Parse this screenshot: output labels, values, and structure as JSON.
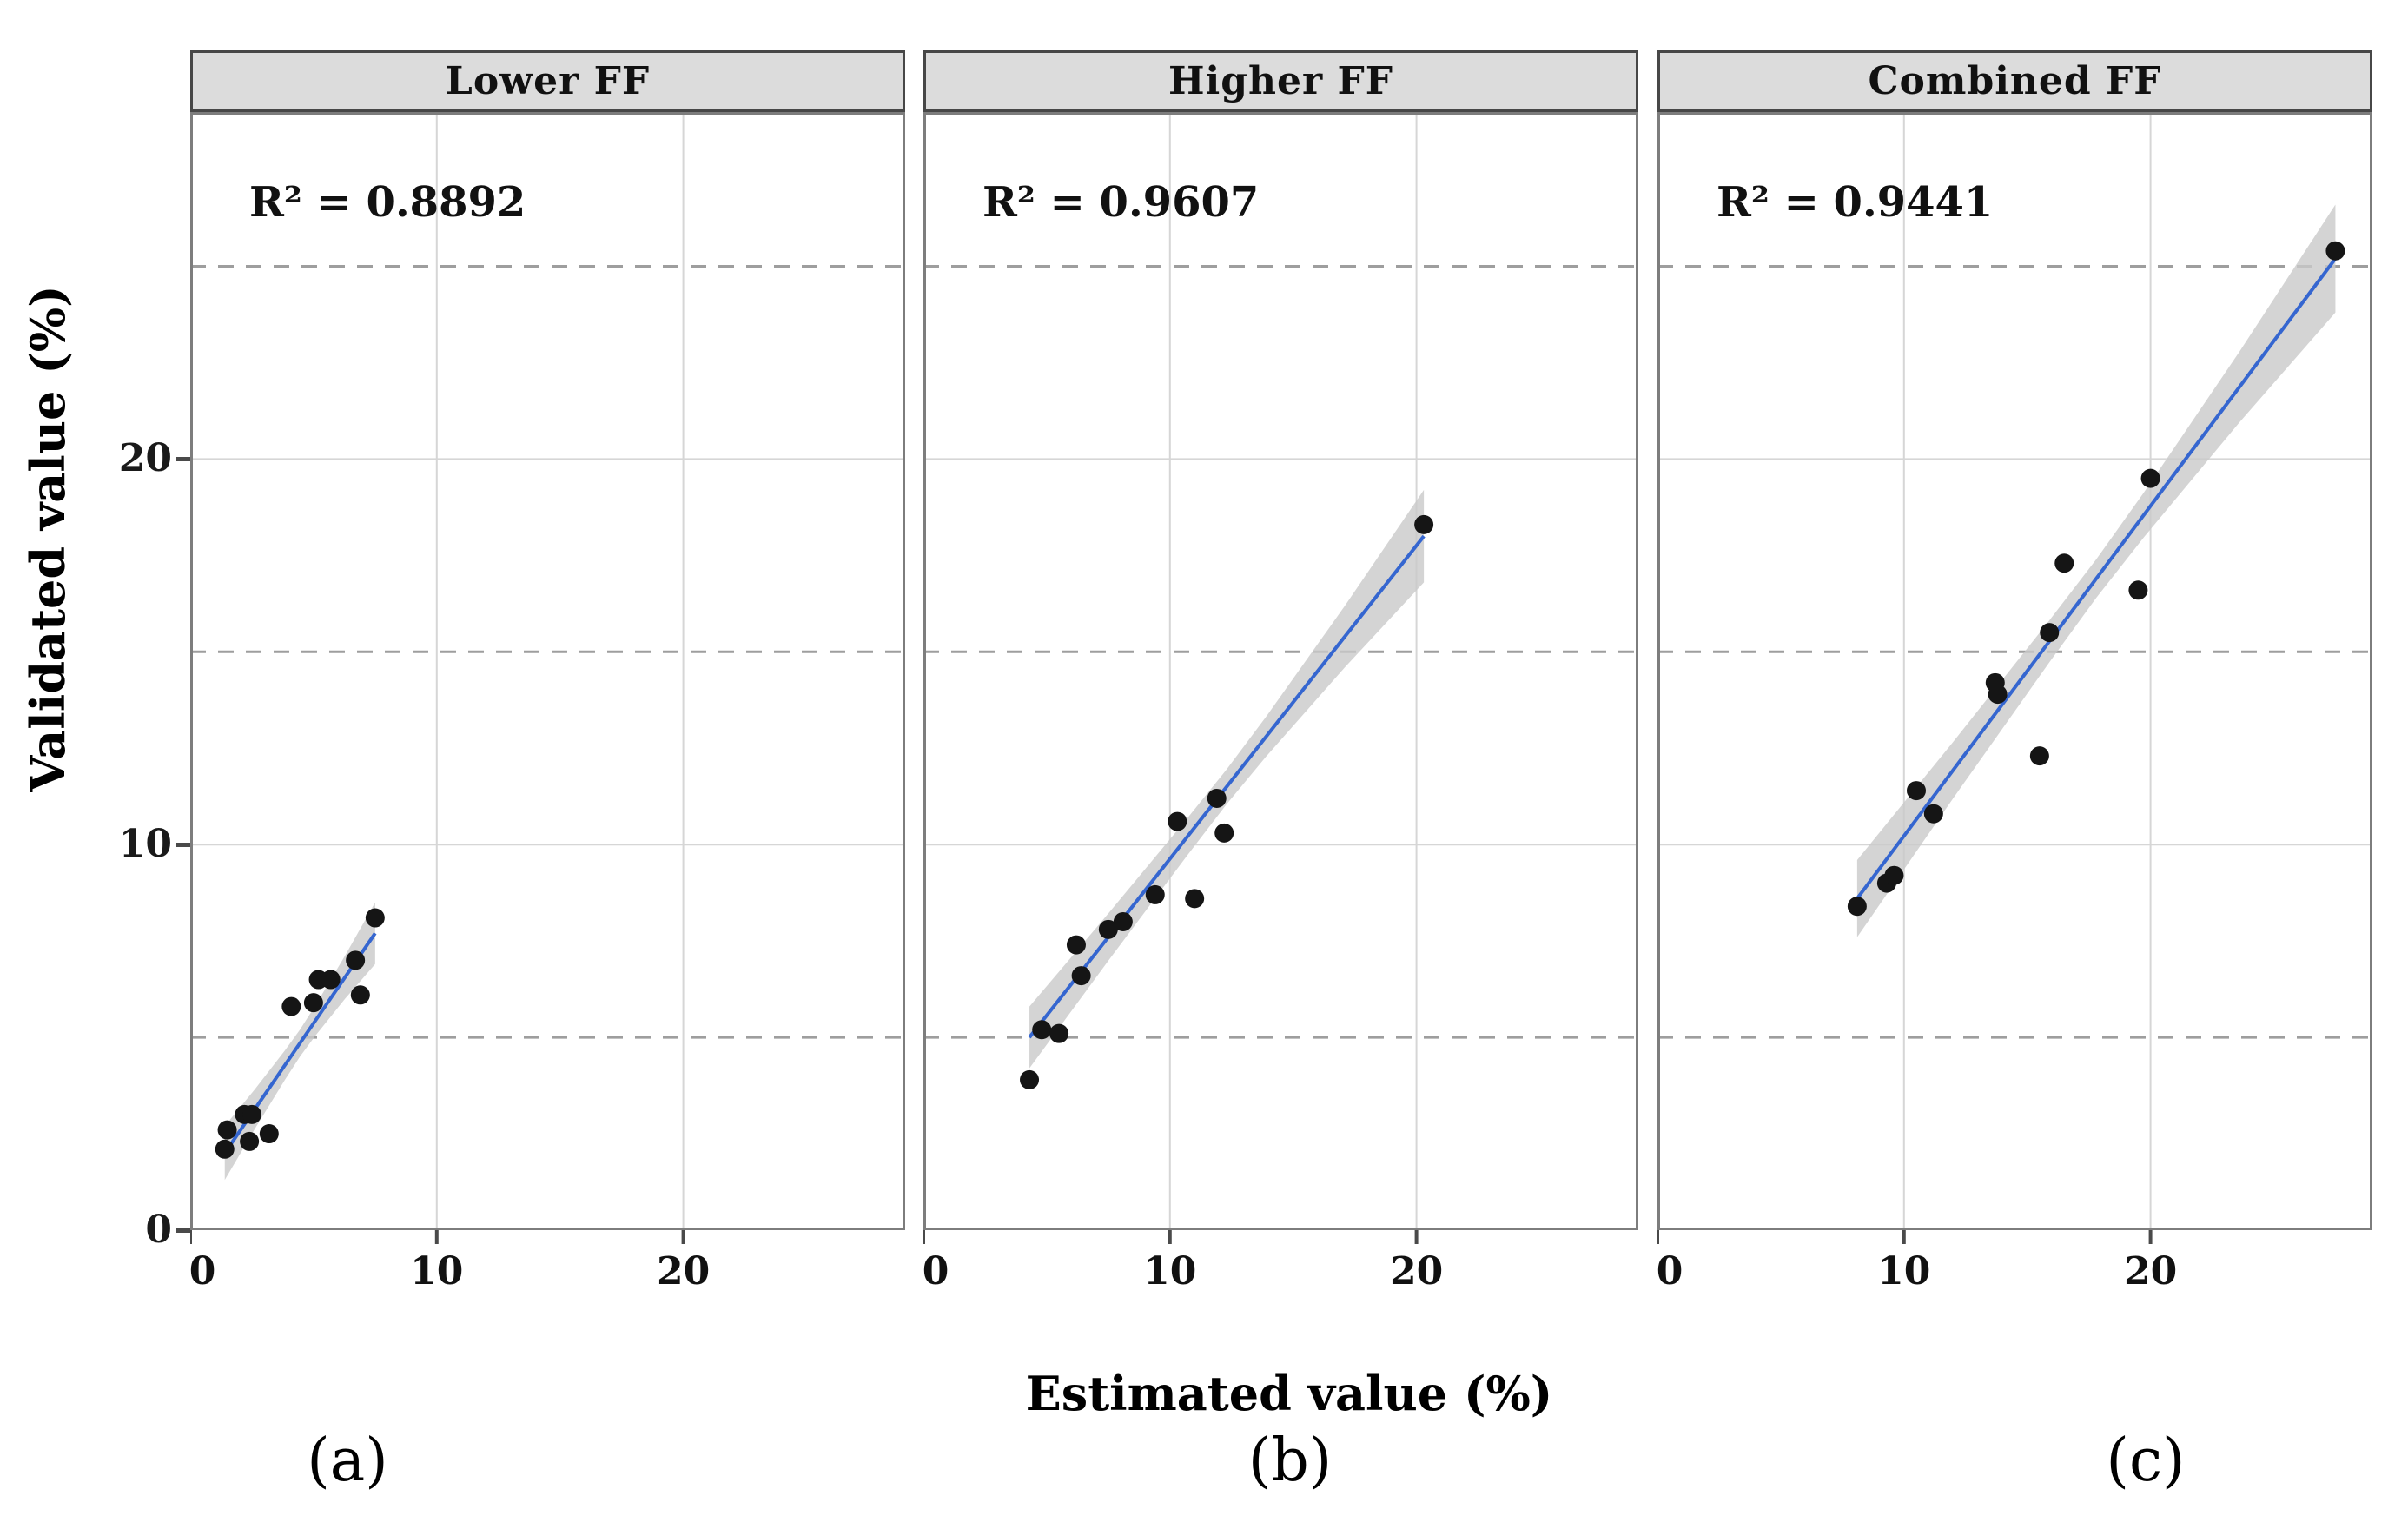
{
  "figure": {
    "y_axis_title": "Validated value (%)",
    "x_axis_title": "Estimated value (%)",
    "colors": {
      "fit_line": "#3566d0",
      "ci_band": "#c9c9c9",
      "point": "#151515",
      "header_fill": "#dcdcdc",
      "header_border": "#474747",
      "panel_border": "#7d7d7d",
      "grid_solid": "#d6d6d6",
      "grid_dashed": "#9e9e9e",
      "tick_mark": "#4a4a4a",
      "text": "#111111"
    }
  },
  "chart_data": [
    {
      "type": "scatter",
      "title": "Lower FF",
      "annotation": "R² = 0.8892",
      "r_squared": 0.8892,
      "sub_label": "(a)",
      "xlabel": "Estimated value (%)",
      "ylabel": "Validated value (%)",
      "xlim": [
        0,
        29
      ],
      "ylim": [
        0,
        29
      ],
      "x_ticks": [
        0,
        10,
        20
      ],
      "y_ticks": [
        0,
        10,
        20
      ],
      "solid_gridlines": [
        10,
        20
      ],
      "dashed_gridlines": [
        5,
        15,
        25
      ],
      "legend": "none",
      "points": [
        [
          1.4,
          2.1
        ],
        [
          1.5,
          2.6
        ],
        [
          2.2,
          3.0
        ],
        [
          2.5,
          3.0
        ],
        [
          2.4,
          2.3
        ],
        [
          3.2,
          2.5
        ],
        [
          4.1,
          5.8
        ],
        [
          5.0,
          5.9
        ],
        [
          5.2,
          6.5
        ],
        [
          5.7,
          6.5
        ],
        [
          6.7,
          7.0
        ],
        [
          6.9,
          6.1
        ],
        [
          7.5,
          8.1
        ]
      ],
      "fit_line": {
        "x1": 1.4,
        "y1": 2.0,
        "x2": 7.5,
        "y2": 7.7
      },
      "ci_halfwidth": {
        "start": 0.7,
        "mid": 0.35,
        "end": 0.8
      }
    },
    {
      "type": "scatter",
      "title": "Higher FF",
      "annotation": "R² = 0.9607",
      "r_squared": 0.9607,
      "sub_label": "(b)",
      "xlabel": "Estimated value (%)",
      "ylabel": "Validated value (%)",
      "xlim": [
        0,
        29
      ],
      "ylim": [
        0,
        29
      ],
      "x_ticks": [
        0,
        10,
        20
      ],
      "y_ticks": [
        0,
        10,
        20
      ],
      "solid_gridlines": [
        10,
        20
      ],
      "dashed_gridlines": [
        5,
        15,
        25
      ],
      "legend": "none",
      "points": [
        [
          4.3,
          3.9
        ],
        [
          4.8,
          5.2
        ],
        [
          5.5,
          5.1
        ],
        [
          6.2,
          7.4
        ],
        [
          6.4,
          6.6
        ],
        [
          7.5,
          7.8
        ],
        [
          8.1,
          8.0
        ],
        [
          9.4,
          8.7
        ],
        [
          10.3,
          10.6
        ],
        [
          11.0,
          8.6
        ],
        [
          11.9,
          11.2
        ],
        [
          12.2,
          10.3
        ],
        [
          20.3,
          18.3
        ]
      ],
      "fit_line": {
        "x1": 4.3,
        "y1": 5.0,
        "x2": 20.3,
        "y2": 18.0
      },
      "ci_halfwidth": {
        "start": 0.8,
        "mid": 0.45,
        "end": 1.2
      }
    },
    {
      "type": "scatter",
      "title": "Combined FF",
      "annotation": "R² = 0.9441",
      "r_squared": 0.9441,
      "sub_label": "(c)",
      "xlabel": "Estimated value (%)",
      "ylabel": "Validated value (%)",
      "xlim": [
        0,
        29
      ],
      "ylim": [
        0,
        29
      ],
      "x_ticks": [
        0,
        10,
        20
      ],
      "y_ticks": [
        0,
        10,
        20
      ],
      "solid_gridlines": [
        10,
        20
      ],
      "dashed_gridlines": [
        5,
        15,
        25
      ],
      "legend": "none",
      "points": [
        [
          8.1,
          8.4
        ],
        [
          9.3,
          9.0
        ],
        [
          9.6,
          9.2
        ],
        [
          10.5,
          11.4
        ],
        [
          11.2,
          10.8
        ],
        [
          13.7,
          14.2
        ],
        [
          13.8,
          13.9
        ],
        [
          15.5,
          12.3
        ],
        [
          15.9,
          15.5
        ],
        [
          16.5,
          17.3
        ],
        [
          19.5,
          16.6
        ],
        [
          20.0,
          19.5
        ],
        [
          27.5,
          25.4
        ]
      ],
      "fit_line": {
        "x1": 8.1,
        "y1": 8.6,
        "x2": 27.5,
        "y2": 25.2
      },
      "ci_halfwidth": {
        "start": 1.0,
        "mid": 0.5,
        "end": 1.4
      }
    }
  ]
}
